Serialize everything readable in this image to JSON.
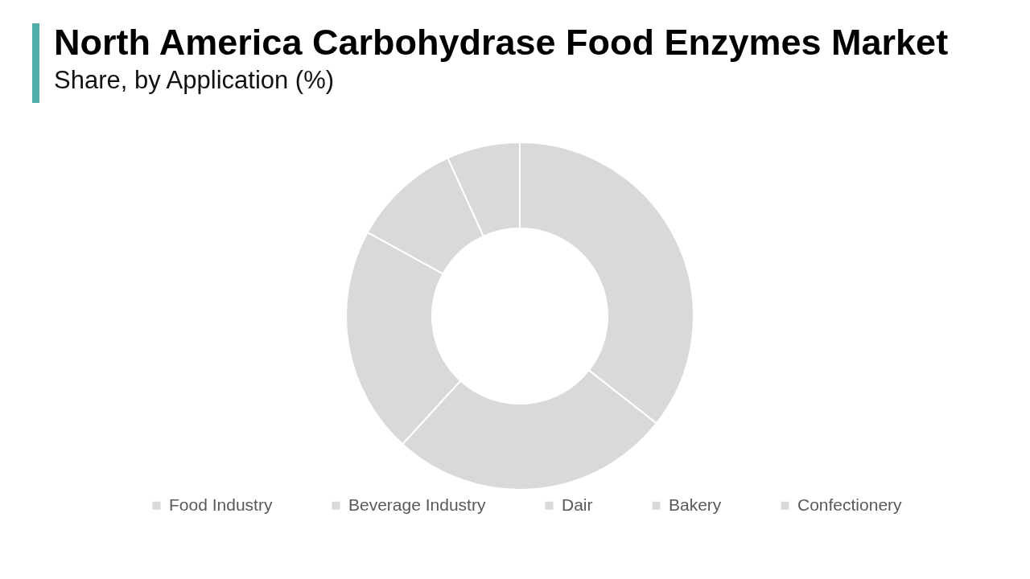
{
  "chart_data": {
    "type": "donut",
    "title": "North America Carbohydrase Food Enzymes Market",
    "subtitle": "Share, by Application (%)",
    "categories": [
      "Food Industry",
      "Beverage Industry",
      "Dair",
      "Bakery",
      "Confectionery"
    ],
    "values": [
      35.6,
      26.2,
      21.2,
      10.2,
      6.8
    ],
    "colors": [
      "#d9d9d9",
      "#d9d9d9",
      "#d9d9d9",
      "#d9d9d9",
      "#d9d9d9"
    ],
    "legend": "bottom"
  }
}
